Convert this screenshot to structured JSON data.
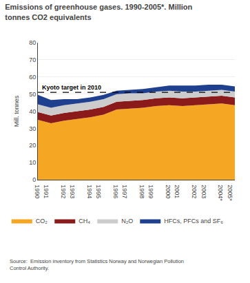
{
  "chart_data": {
    "type": "area",
    "title": "Emissions of greenhouse gases. 1990-2005*. Million\ntonnes CO2 equivalents",
    "y_label": "Mill. tonnes",
    "stacked": true,
    "x": [
      1990,
      1991,
      1992,
      1993,
      1994,
      1995,
      1996,
      1997,
      1998,
      1999,
      2000,
      2001,
      2002,
      2003,
      2004,
      2005
    ],
    "series": [
      {
        "name": "CO₂",
        "color": "#F5A623",
        "values": [
          35.0,
          33.0,
          34.5,
          35.5,
          36.5,
          38.0,
          41.0,
          41.5,
          42.0,
          43.0,
          43.5,
          43.0,
          43.5,
          44.0,
          44.5,
          43.5
        ]
      },
      {
        "name": "CH₄",
        "color": "#8B1A1A",
        "values": [
          4.5,
          4.5,
          4.5,
          4.5,
          4.5,
          4.5,
          4.5,
          4.5,
          4.5,
          4.5,
          4.5,
          4.5,
          4.5,
          4.5,
          4.5,
          4.5
        ]
      },
      {
        "name": "N₂O",
        "color": "#CCCCCC",
        "values": [
          4.5,
          4.5,
          4.5,
          4.5,
          4.5,
          4.5,
          4.5,
          4.5,
          4.0,
          4.0,
          4.0,
          4.0,
          3.5,
          3.5,
          3.5,
          3.5
        ]
      },
      {
        "name": "HFCs, PFCs and SF₆",
        "color": "#1F3F8F",
        "values": [
          5.5,
          4.5,
          3.5,
          2.5,
          2.5,
          2.5,
          2.0,
          2.0,
          2.5,
          2.5,
          3.0,
          3.5,
          3.5,
          3.5,
          3.0,
          3.0
        ]
      }
    ],
    "reference_lines": [
      {
        "value": 51.0,
        "label": "Kyoto target in 2010",
        "color": "#000000",
        "line_style": "dashed"
      }
    ],
    "xlim": [
      1990,
      2005
    ],
    "xticks": [
      1990,
      1991,
      1992,
      1993,
      1994,
      1995,
      1996,
      1997,
      1998,
      1999,
      2000,
      2001,
      2002,
      2003,
      {
        "value": 2004,
        "label": "2004*"
      },
      {
        "value": 2005,
        "label": "2005*"
      }
    ],
    "ylim": [
      0,
      80
    ],
    "yticks": [
      0,
      10,
      20,
      30,
      40,
      50,
      60,
      70,
      80
    ],
    "grid": "y",
    "legend": "bottom",
    "source": "Source:  Emission inventory from Statistics Norway and Norwegian Pollution\nControl Authority."
  }
}
